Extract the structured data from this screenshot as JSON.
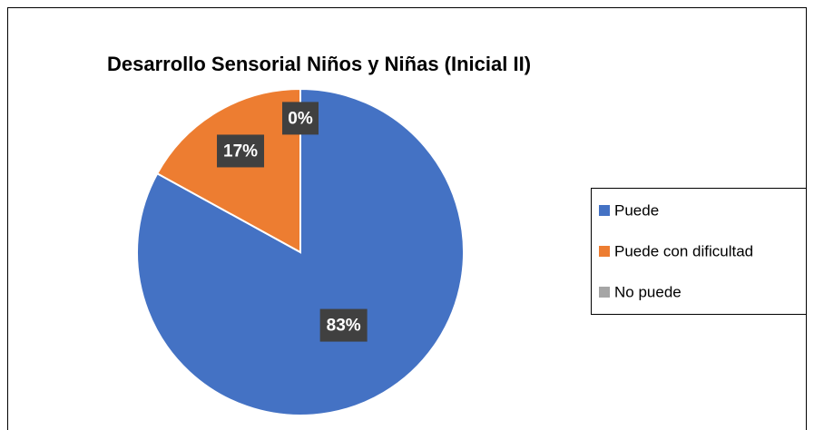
{
  "chart_data": {
    "type": "pie",
    "title": "Desarrollo Sensorial Niños y Niñas (Inicial II)",
    "categories": [
      "Puede",
      "Puede con dificultad",
      "No puede"
    ],
    "values": [
      83,
      17,
      0
    ],
    "value_labels": [
      "83%",
      "17%",
      "0%"
    ],
    "colors": [
      "#4472c4",
      "#ed7d31",
      "#a5a5a5"
    ],
    "legend": "right"
  }
}
